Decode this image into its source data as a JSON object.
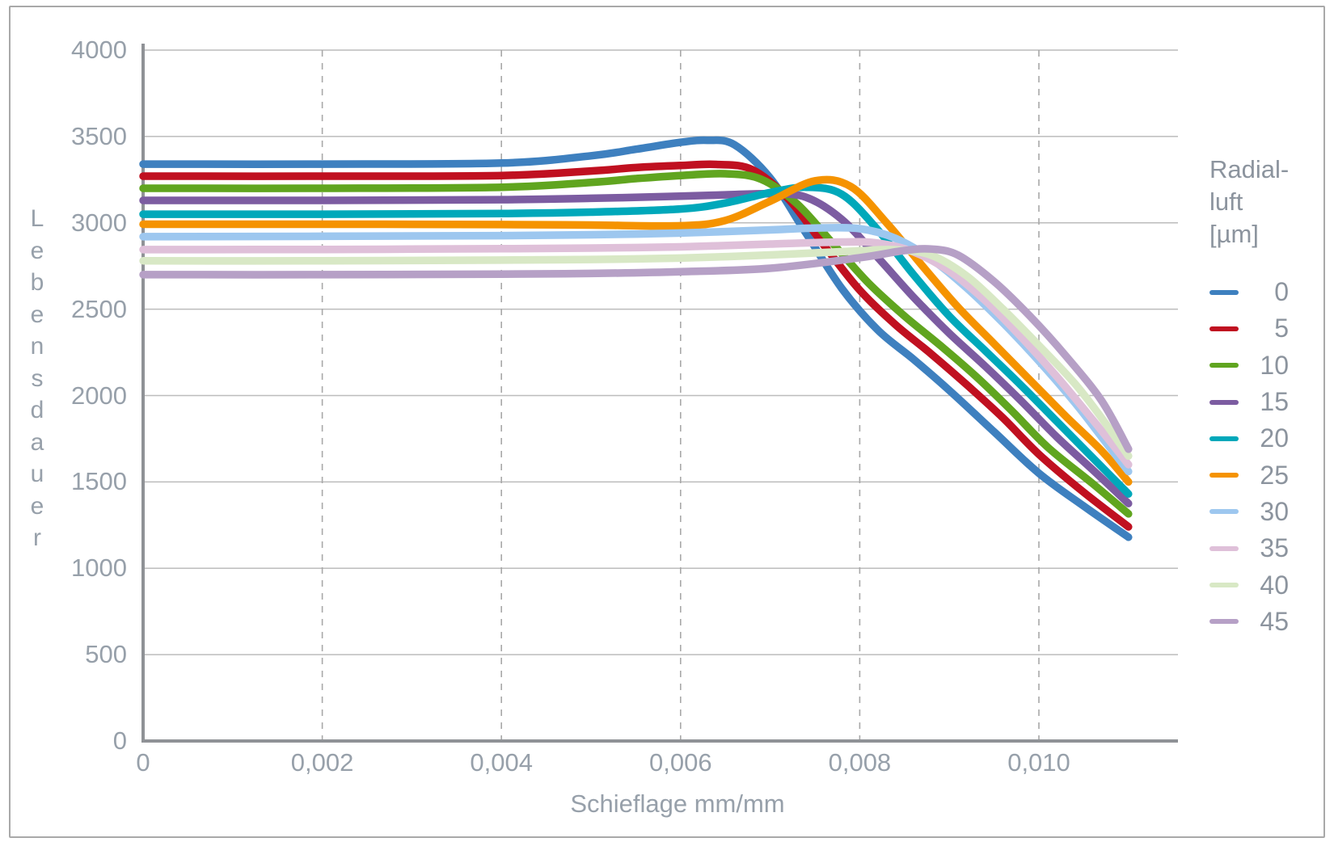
{
  "figure": {
    "background": "#ffffff",
    "border_color": "#a9a9a9"
  },
  "palette": {
    "axis_line": "#8f9296",
    "grid_solid": "#bcbcbc",
    "grid_dashed": "#a8a8a8",
    "text": "#97a0aa",
    "legend_text": "#8c949e"
  },
  "chart_data": {
    "type": "line",
    "title": "",
    "xlabel": "Schieflage mm/mm",
    "ylabel": "Lebensdauer",
    "xlim": [
      0,
      0.0117
    ],
    "ylim": [
      0,
      4000
    ],
    "grid": {
      "horizontal": "solid",
      "vertical": "dashed"
    },
    "x_ticks": [
      {
        "value": 0,
        "label": "0"
      },
      {
        "value": 0.002,
        "label": "0,002"
      },
      {
        "value": 0.004,
        "label": "0,004"
      },
      {
        "value": 0.006,
        "label": "0,006"
      },
      {
        "value": 0.008,
        "label": "0,008"
      },
      {
        "value": 0.01,
        "label": "0,010"
      }
    ],
    "y_ticks": [
      {
        "value": 0,
        "label": "0"
      },
      {
        "value": 500,
        "label": "500"
      },
      {
        "value": 1000,
        "label": "1000"
      },
      {
        "value": 1500,
        "label": "1500"
      },
      {
        "value": 2000,
        "label": "2000"
      },
      {
        "value": 2500,
        "label": "2500"
      },
      {
        "value": 3000,
        "label": "3000"
      },
      {
        "value": 3500,
        "label": "3500"
      },
      {
        "value": 4000,
        "label": "4000"
      }
    ],
    "legend": {
      "position": "right",
      "title_lines": [
        "Radial-",
        "luft",
        "[µm]"
      ]
    },
    "series": [
      {
        "name": "0",
        "unit": "µm",
        "color": "#3e80bf",
        "points": [
          [
            0,
            3340
          ],
          [
            0.002,
            3340
          ],
          [
            0.004,
            3346
          ],
          [
            0.005,
            3388
          ],
          [
            0.0055,
            3426
          ],
          [
            0.006,
            3466
          ],
          [
            0.0063,
            3478
          ],
          [
            0.0066,
            3452
          ],
          [
            0.007,
            3260
          ],
          [
            0.0074,
            2940
          ],
          [
            0.0078,
            2620
          ],
          [
            0.0082,
            2380
          ],
          [
            0.0086,
            2210
          ],
          [
            0.009,
            2030
          ],
          [
            0.0095,
            1790
          ],
          [
            0.01,
            1550
          ],
          [
            0.0105,
            1360
          ],
          [
            0.011,
            1180
          ]
        ]
      },
      {
        "name": "5",
        "unit": "µm",
        "color": "#c01020",
        "points": [
          [
            0,
            3270
          ],
          [
            0.002,
            3270
          ],
          [
            0.004,
            3274
          ],
          [
            0.005,
            3300
          ],
          [
            0.0055,
            3320
          ],
          [
            0.006,
            3332
          ],
          [
            0.0064,
            3338
          ],
          [
            0.0068,
            3308
          ],
          [
            0.0072,
            3140
          ],
          [
            0.0076,
            2870
          ],
          [
            0.008,
            2610
          ],
          [
            0.0084,
            2410
          ],
          [
            0.0088,
            2240
          ],
          [
            0.0092,
            2060
          ],
          [
            0.0096,
            1870
          ],
          [
            0.01,
            1660
          ],
          [
            0.0105,
            1440
          ],
          [
            0.011,
            1240
          ]
        ]
      },
      {
        "name": "10",
        "unit": "µm",
        "color": "#60a51f",
        "points": [
          [
            0,
            3200
          ],
          [
            0.002,
            3200
          ],
          [
            0.004,
            3206
          ],
          [
            0.005,
            3234
          ],
          [
            0.0055,
            3256
          ],
          [
            0.006,
            3274
          ],
          [
            0.0065,
            3284
          ],
          [
            0.0069,
            3252
          ],
          [
            0.0073,
            3110
          ],
          [
            0.0077,
            2880
          ],
          [
            0.0081,
            2650
          ],
          [
            0.0085,
            2460
          ],
          [
            0.0089,
            2290
          ],
          [
            0.0093,
            2110
          ],
          [
            0.0097,
            1910
          ],
          [
            0.0101,
            1700
          ],
          [
            0.0106,
            1490
          ],
          [
            0.011,
            1315
          ]
        ]
      },
      {
        "name": "15",
        "unit": "µm",
        "color": "#7c5ca1",
        "points": [
          [
            0,
            3130
          ],
          [
            0.002,
            3130
          ],
          [
            0.004,
            3134
          ],
          [
            0.005,
            3142
          ],
          [
            0.006,
            3154
          ],
          [
            0.0065,
            3162
          ],
          [
            0.007,
            3168
          ],
          [
            0.0074,
            3148
          ],
          [
            0.0078,
            3020
          ],
          [
            0.0082,
            2800
          ],
          [
            0.0086,
            2570
          ],
          [
            0.009,
            2360
          ],
          [
            0.0094,
            2170
          ],
          [
            0.0098,
            1970
          ],
          [
            0.0102,
            1760
          ],
          [
            0.0106,
            1570
          ],
          [
            0.011,
            1375
          ]
        ]
      },
      {
        "name": "20",
        "unit": "µm",
        "color": "#00a8ba",
        "points": [
          [
            0,
            3050
          ],
          [
            0.002,
            3050
          ],
          [
            0.004,
            3054
          ],
          [
            0.005,
            3062
          ],
          [
            0.006,
            3080
          ],
          [
            0.0065,
            3115
          ],
          [
            0.007,
            3175
          ],
          [
            0.0074,
            3206
          ],
          [
            0.0078,
            3165
          ],
          [
            0.0082,
            2960
          ],
          [
            0.0086,
            2700
          ],
          [
            0.009,
            2460
          ],
          [
            0.0094,
            2260
          ],
          [
            0.0098,
            2060
          ],
          [
            0.0102,
            1850
          ],
          [
            0.0106,
            1640
          ],
          [
            0.011,
            1430
          ]
        ]
      },
      {
        "name": "25",
        "unit": "µm",
        "color": "#f59300",
        "points": [
          [
            0,
            2992
          ],
          [
            0.002,
            2992
          ],
          [
            0.004,
            2990
          ],
          [
            0.005,
            2987
          ],
          [
            0.006,
            2983
          ],
          [
            0.0065,
            3014
          ],
          [
            0.007,
            3125
          ],
          [
            0.0075,
            3243
          ],
          [
            0.0079,
            3210
          ],
          [
            0.0083,
            3000
          ],
          [
            0.0087,
            2750
          ],
          [
            0.0091,
            2510
          ],
          [
            0.0095,
            2300
          ],
          [
            0.0099,
            2090
          ],
          [
            0.0103,
            1880
          ],
          [
            0.0107,
            1680
          ],
          [
            0.011,
            1500
          ]
        ]
      },
      {
        "name": "30",
        "unit": "µm",
        "color": "#9dc7ef",
        "points": [
          [
            0,
            2920
          ],
          [
            0.002,
            2922
          ],
          [
            0.004,
            2926
          ],
          [
            0.005,
            2931
          ],
          [
            0.006,
            2941
          ],
          [
            0.007,
            2959
          ],
          [
            0.0075,
            2970
          ],
          [
            0.008,
            2966
          ],
          [
            0.0084,
            2910
          ],
          [
            0.0088,
            2790
          ],
          [
            0.0092,
            2620
          ],
          [
            0.0096,
            2420
          ],
          [
            0.01,
            2200
          ],
          [
            0.0104,
            1960
          ],
          [
            0.0107,
            1760
          ],
          [
            0.011,
            1560
          ]
        ]
      },
      {
        "name": "35",
        "unit": "µm",
        "color": "#dfc0d9",
        "points": [
          [
            0,
            2845
          ],
          [
            0.002,
            2846
          ],
          [
            0.004,
            2850
          ],
          [
            0.005,
            2854
          ],
          [
            0.006,
            2861
          ],
          [
            0.007,
            2877
          ],
          [
            0.0078,
            2889
          ],
          [
            0.0082,
            2883
          ],
          [
            0.0086,
            2832
          ],
          [
            0.009,
            2720
          ],
          [
            0.0094,
            2550
          ],
          [
            0.0098,
            2340
          ],
          [
            0.0102,
            2110
          ],
          [
            0.0106,
            1860
          ],
          [
            0.011,
            1600
          ]
        ]
      },
      {
        "name": "40",
        "unit": "µm",
        "color": "#d8e8c5",
        "points": [
          [
            0,
            2780
          ],
          [
            0.002,
            2780
          ],
          [
            0.004,
            2784
          ],
          [
            0.005,
            2788
          ],
          [
            0.006,
            2796
          ],
          [
            0.007,
            2814
          ],
          [
            0.008,
            2838
          ],
          [
            0.0084,
            2844
          ],
          [
            0.0088,
            2812
          ],
          [
            0.0092,
            2690
          ],
          [
            0.0096,
            2500
          ],
          [
            0.01,
            2290
          ],
          [
            0.0104,
            2070
          ],
          [
            0.0107,
            1870
          ],
          [
            0.011,
            1650
          ]
        ]
      },
      {
        "name": "45",
        "unit": "µm",
        "color": "#b6a0c6",
        "points": [
          [
            0,
            2700
          ],
          [
            0.002,
            2700
          ],
          [
            0.004,
            2703
          ],
          [
            0.005,
            2707
          ],
          [
            0.006,
            2717
          ],
          [
            0.007,
            2737
          ],
          [
            0.008,
            2798
          ],
          [
            0.0085,
            2840
          ],
          [
            0.0088,
            2848
          ],
          [
            0.0091,
            2812
          ],
          [
            0.0095,
            2660
          ],
          [
            0.0099,
            2460
          ],
          [
            0.0103,
            2230
          ],
          [
            0.0107,
            1970
          ],
          [
            0.011,
            1690
          ]
        ]
      }
    ]
  }
}
